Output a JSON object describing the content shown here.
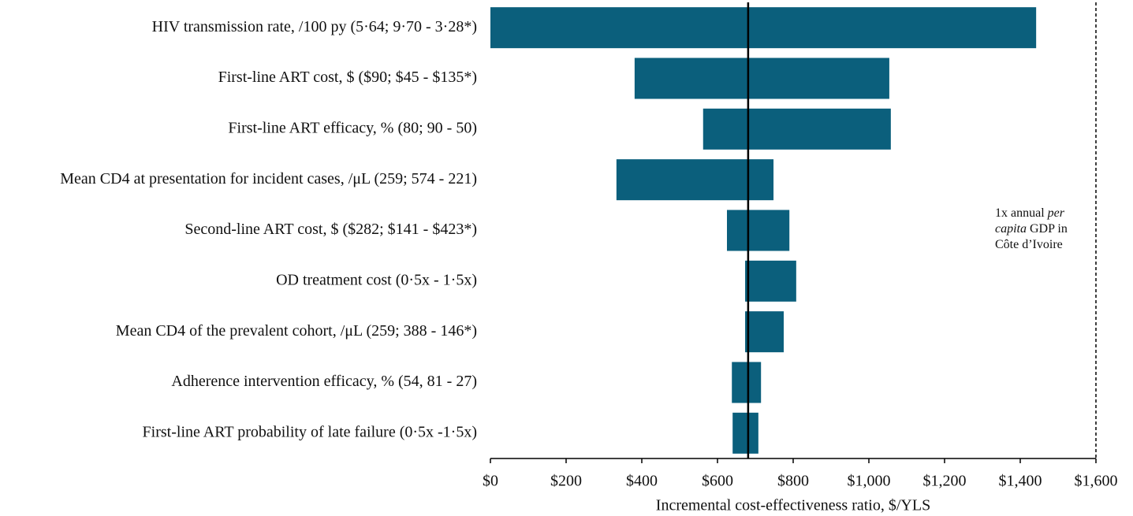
{
  "chart_data": {
    "type": "tornado",
    "categories": [
      "HIV transmission rate, /100 py (5·64; 9·70 - 3·28*)",
      "First-line ART cost, $ ($90; $45 - $135*)",
      "First-line ART efficacy, % (80; 90 - 50)",
      "Mean CD4 at presentation for incident cases, /μL (259; 574 - 221)",
      "Second-line ART cost, $ ($282; $141 - $423*)",
      "OD treatment cost (0·5x - 1·5x)",
      "Mean CD4 of the prevalent cohort, /μL (259; 388 - 146*)",
      "Adherence intervention efficacy, % (54, 81 - 27)",
      "First-line ART probability of late failure (0·5x -1·5x)"
    ],
    "ranges": [
      [
        0,
        1442
      ],
      [
        381,
        1054
      ],
      [
        562,
        1058
      ],
      [
        333,
        748
      ],
      [
        625,
        790
      ],
      [
        673,
        808
      ],
      [
        673,
        775
      ],
      [
        638,
        715
      ],
      [
        640,
        708
      ]
    ],
    "base_value": 681,
    "threshold": 1600,
    "annotation": [
      "1x annual ",
      "per",
      "capita",
      " GDP in",
      "Côte d’Ivoire"
    ],
    "color": "#0b5f7c",
    "xlabel": "Incremental cost-effectiveness ratio, $/YLS",
    "xlim": [
      0,
      1600
    ],
    "xticks": [
      {
        "value": 0,
        "label": "$0"
      },
      {
        "value": 200,
        "label": "$200"
      },
      {
        "value": 400,
        "label": "$400"
      },
      {
        "value": 600,
        "label": "$600"
      },
      {
        "value": 800,
        "label": "$800"
      },
      {
        "value": 1000,
        "label": "$1,000"
      },
      {
        "value": 1200,
        "label": "$1,200"
      },
      {
        "value": 1400,
        "label": "$1,400"
      },
      {
        "value": 1600,
        "label": "$1,600"
      }
    ]
  }
}
